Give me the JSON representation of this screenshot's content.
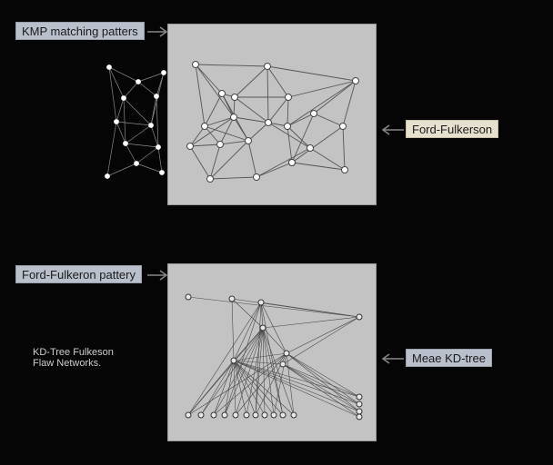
{
  "labels": {
    "top_left": "KMP matching patters",
    "top_right": "Ford-Fulkerson",
    "bottom_left": "Ford-Fulkeron pattery",
    "bottom_right": "Meae KD-tree"
  },
  "caption": {
    "line1": "KD-Tree Fulkeson",
    "line2": "Flaw Networks."
  },
  "colors": {
    "background": "#050505",
    "panel": "#c2c3c2",
    "label_blue": "#b9bfcb",
    "label_beige": "#e6e0cf",
    "edge": "#5a5a5a",
    "node_fill": "#ffffff"
  }
}
